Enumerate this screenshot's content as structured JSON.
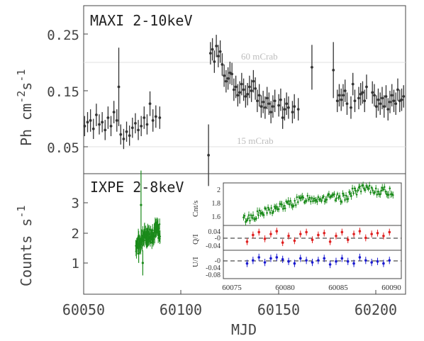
{
  "chart_data": [
    {
      "type": "scatter",
      "panel": "maxi",
      "title": "MAXI 2-10keV",
      "xlabel": "MJD",
      "ylabel_main": "Ph cm",
      "ylabel_exp1": "-2",
      "ylabel_mid": "s",
      "ylabel_exp2": "-1",
      "xlim": [
        60050,
        60215
      ],
      "ylim": [
        0.0,
        0.3
      ],
      "yticks": [
        0.05,
        0.15,
        0.25
      ],
      "ytick_labels": [
        "0.05",
        "0.15",
        "0.25"
      ],
      "reference_lines": [
        {
          "y": 0.2,
          "label": "60 mCrab"
        },
        {
          "y": 0.05,
          "label": "15 mCrab"
        }
      ],
      "color": "#333333",
      "points": [
        {
          "x": 60050.5,
          "y": 0.085,
          "e": 0.018
        },
        {
          "x": 60052,
          "y": 0.092,
          "e": 0.018
        },
        {
          "x": 60053.5,
          "y": 0.095,
          "e": 0.02
        },
        {
          "x": 60055,
          "y": 0.08,
          "e": 0.018
        },
        {
          "x": 60056.5,
          "y": 0.105,
          "e": 0.02
        },
        {
          "x": 60058,
          "y": 0.088,
          "e": 0.018
        },
        {
          "x": 60059.5,
          "y": 0.092,
          "e": 0.018
        },
        {
          "x": 60061,
          "y": 0.078,
          "e": 0.018
        },
        {
          "x": 60062.5,
          "y": 0.1,
          "e": 0.02
        },
        {
          "x": 60064,
          "y": 0.085,
          "e": 0.018
        },
        {
          "x": 60065.5,
          "y": 0.11,
          "e": 0.02
        },
        {
          "x": 60067,
          "y": 0.095,
          "e": 0.02
        },
        {
          "x": 60068,
          "y": 0.155,
          "e": 0.07
        },
        {
          "x": 60069,
          "y": 0.07,
          "e": 0.018
        },
        {
          "x": 60070.5,
          "y": 0.062,
          "e": 0.018
        },
        {
          "x": 60072,
          "y": 0.075,
          "e": 0.018
        },
        {
          "x": 60073.5,
          "y": 0.068,
          "e": 0.018
        },
        {
          "x": 60075,
          "y": 0.082,
          "e": 0.018
        },
        {
          "x": 60076.5,
          "y": 0.09,
          "e": 0.018
        },
        {
          "x": 60078,
          "y": 0.078,
          "e": 0.018
        },
        {
          "x": 60079.5,
          "y": 0.085,
          "e": 0.018
        },
        {
          "x": 60081,
          "y": 0.1,
          "e": 0.02
        },
        {
          "x": 60082.5,
          "y": 0.088,
          "e": 0.018
        },
        {
          "x": 60084,
          "y": 0.125,
          "e": 0.022
        },
        {
          "x": 60085.5,
          "y": 0.095,
          "e": 0.02
        },
        {
          "x": 60087,
          "y": 0.102,
          "e": 0.02
        },
        {
          "x": 60089,
          "y": 0.1,
          "e": 0.02
        },
        {
          "x": 60114,
          "y": 0.033,
          "e": 0.055
        },
        {
          "x": 60115,
          "y": 0.215,
          "e": 0.02
        },
        {
          "x": 60116,
          "y": 0.222,
          "e": 0.02
        },
        {
          "x": 60117,
          "y": 0.2,
          "e": 0.02
        },
        {
          "x": 60118,
          "y": 0.228,
          "e": 0.02
        },
        {
          "x": 60119,
          "y": 0.21,
          "e": 0.02
        },
        {
          "x": 60120,
          "y": 0.218,
          "e": 0.02
        },
        {
          "x": 60121,
          "y": 0.195,
          "e": 0.02
        },
        {
          "x": 60122,
          "y": 0.175,
          "e": 0.02
        },
        {
          "x": 60123,
          "y": 0.165,
          "e": 0.02
        },
        {
          "x": 60124,
          "y": 0.17,
          "e": 0.02
        },
        {
          "x": 60125,
          "y": 0.18,
          "e": 0.02
        },
        {
          "x": 60126,
          "y": 0.178,
          "e": 0.02
        },
        {
          "x": 60127,
          "y": 0.15,
          "e": 0.02
        },
        {
          "x": 60128,
          "y": 0.155,
          "e": 0.02
        },
        {
          "x": 60129,
          "y": 0.14,
          "e": 0.02
        },
        {
          "x": 60130,
          "y": 0.145,
          "e": 0.02
        },
        {
          "x": 60131,
          "y": 0.16,
          "e": 0.02
        },
        {
          "x": 60132,
          "y": 0.15,
          "e": 0.02
        },
        {
          "x": 60133,
          "y": 0.138,
          "e": 0.02
        },
        {
          "x": 60134,
          "y": 0.142,
          "e": 0.02
        },
        {
          "x": 60135,
          "y": 0.155,
          "e": 0.02
        },
        {
          "x": 60136,
          "y": 0.148,
          "e": 0.02
        },
        {
          "x": 60137,
          "y": 0.165,
          "e": 0.02
        },
        {
          "x": 60138,
          "y": 0.152,
          "e": 0.02
        },
        {
          "x": 60139,
          "y": 0.13,
          "e": 0.02
        },
        {
          "x": 60140,
          "y": 0.14,
          "e": 0.02
        },
        {
          "x": 60141,
          "y": 0.12,
          "e": 0.02
        },
        {
          "x": 60142,
          "y": 0.128,
          "e": 0.02
        },
        {
          "x": 60143,
          "y": 0.118,
          "e": 0.02
        },
        {
          "x": 60144,
          "y": 0.135,
          "e": 0.02
        },
        {
          "x": 60145,
          "y": 0.125,
          "e": 0.02
        },
        {
          "x": 60146,
          "y": 0.11,
          "e": 0.02
        },
        {
          "x": 60147,
          "y": 0.12,
          "e": 0.02
        },
        {
          "x": 60148,
          "y": 0.13,
          "e": 0.02
        },
        {
          "x": 60150,
          "y": 0.122,
          "e": 0.02
        },
        {
          "x": 60151,
          "y": 0.132,
          "e": 0.02
        },
        {
          "x": 60152,
          "y": 0.1,
          "e": 0.02
        },
        {
          "x": 60153,
          "y": 0.115,
          "e": 0.02
        },
        {
          "x": 60154,
          "y": 0.125,
          "e": 0.02
        },
        {
          "x": 60155,
          "y": 0.118,
          "e": 0.02
        },
        {
          "x": 60157,
          "y": 0.11,
          "e": 0.02
        },
        {
          "x": 60158,
          "y": 0.12,
          "e": 0.022
        },
        {
          "x": 60160,
          "y": 0.115,
          "e": 0.02
        },
        {
          "x": 60167,
          "y": 0.19,
          "e": 0.04
        },
        {
          "x": 60178,
          "y": 0.185,
          "e": 0.05
        },
        {
          "x": 60180,
          "y": 0.13,
          "e": 0.02
        },
        {
          "x": 60181,
          "y": 0.14,
          "e": 0.02
        },
        {
          "x": 60182,
          "y": 0.132,
          "e": 0.02
        },
        {
          "x": 60183,
          "y": 0.14,
          "e": 0.02
        },
        {
          "x": 60184,
          "y": 0.148,
          "e": 0.02
        },
        {
          "x": 60185,
          "y": 0.125,
          "e": 0.02
        },
        {
          "x": 60187,
          "y": 0.118,
          "e": 0.02
        },
        {
          "x": 60188,
          "y": 0.16,
          "e": 0.02
        },
        {
          "x": 60189,
          "y": 0.13,
          "e": 0.02
        },
        {
          "x": 60191,
          "y": 0.135,
          "e": 0.02
        },
        {
          "x": 60192,
          "y": 0.142,
          "e": 0.02
        },
        {
          "x": 60193,
          "y": 0.145,
          "e": 0.02
        },
        {
          "x": 60194,
          "y": 0.13,
          "e": 0.02
        },
        {
          "x": 60195,
          "y": 0.155,
          "e": 0.022
        },
        {
          "x": 60198,
          "y": 0.145,
          "e": 0.02
        },
        {
          "x": 60199,
          "y": 0.14,
          "e": 0.02
        },
        {
          "x": 60200,
          "y": 0.12,
          "e": 0.02
        },
        {
          "x": 60201,
          "y": 0.132,
          "e": 0.02
        },
        {
          "x": 60202,
          "y": 0.125,
          "e": 0.02
        },
        {
          "x": 60203,
          "y": 0.135,
          "e": 0.02
        },
        {
          "x": 60204,
          "y": 0.12,
          "e": 0.02
        },
        {
          "x": 60205,
          "y": 0.138,
          "e": 0.02
        },
        {
          "x": 60206,
          "y": 0.115,
          "e": 0.02
        },
        {
          "x": 60207,
          "y": 0.128,
          "e": 0.02
        },
        {
          "x": 60208,
          "y": 0.14,
          "e": 0.02
        },
        {
          "x": 60209,
          "y": 0.13,
          "e": 0.02
        },
        {
          "x": 60210,
          "y": 0.125,
          "e": 0.02
        },
        {
          "x": 60211,
          "y": 0.15,
          "e": 0.02
        },
        {
          "x": 60212,
          "y": 0.13,
          "e": 0.02
        },
        {
          "x": 60213,
          "y": 0.132,
          "e": 0.02
        },
        {
          "x": 60214,
          "y": 0.138,
          "e": 0.02
        }
      ]
    },
    {
      "type": "scatter",
      "panel": "ixpe",
      "title": "IXPE 2-8keV",
      "xlabel": "MJD",
      "ylabel_main": "Counts s",
      "ylabel_exp": "-1",
      "xlim": [
        60050,
        60215
      ],
      "ylim": [
        0.0,
        3.85
      ],
      "xticks": [
        60050,
        60100,
        60150,
        60200
      ],
      "xtick_labels": [
        "60050",
        "60100",
        "60150",
        "60200"
      ],
      "yticks": [
        1,
        2,
        3
      ],
      "ytick_labels": [
        "1",
        "2",
        "3"
      ],
      "color": "#1a8a1a",
      "x_range": [
        60076.7,
        60089.3
      ],
      "trend": [
        {
          "x": 60076.7,
          "y": 1.55
        },
        {
          "x": 60079,
          "y": 1.7
        },
        {
          "x": 60082,
          "y": 1.9
        },
        {
          "x": 60085,
          "y": 1.9
        },
        {
          "x": 60086.5,
          "y": 2.05
        },
        {
          "x": 60089.3,
          "y": 2.0
        }
      ],
      "outliers": [
        {
          "x": 60079.4,
          "y": 2.85,
          "e": 1.1
        },
        {
          "x": 60080.3,
          "y": 1.0,
          "e": 0.4
        },
        {
          "x": 60078.2,
          "y": 1.3,
          "e": 0.3
        }
      ]
    },
    {
      "type": "scatter",
      "panel": "inset-counts",
      "ylabel": "Cnt/s",
      "xlim": [
        60075,
        60090
      ],
      "ylim": [
        1.45,
        2.15
      ],
      "yticks": [
        1.6,
        1.8,
        2.0
      ],
      "ytick_labels": [
        "1.6",
        "1.8",
        "2"
      ],
      "color": "#1a8a1a",
      "x_range": [
        60076.7,
        60089.3
      ]
    },
    {
      "type": "scatter",
      "panel": "inset-q",
      "ylabel": "Q/I",
      "xlim": [
        60075,
        60090
      ],
      "ylim": [
        -0.065,
        0.065
      ],
      "yticks": [
        0.04,
        0.0,
        -0.04
      ],
      "ytick_labels": [
        "0.04",
        "-0",
        "-0.04"
      ],
      "color": "#e02020",
      "points": [
        {
          "x": 60077.0,
          "y": -0.02
        },
        {
          "x": 60077.5,
          "y": 0.015
        },
        {
          "x": 60078.0,
          "y": 0.03
        },
        {
          "x": 60078.5,
          "y": -0.005
        },
        {
          "x": 60079.0,
          "y": 0.02
        },
        {
          "x": 60079.5,
          "y": 0.035
        },
        {
          "x": 60080.0,
          "y": -0.025
        },
        {
          "x": 60080.5,
          "y": 0.01
        },
        {
          "x": 60081.0,
          "y": -0.015
        },
        {
          "x": 60081.5,
          "y": 0.02
        },
        {
          "x": 60082.0,
          "y": 0.03
        },
        {
          "x": 60082.5,
          "y": -0.01
        },
        {
          "x": 60083.0,
          "y": 0.015
        },
        {
          "x": 60083.5,
          "y": 0.025
        },
        {
          "x": 60084.0,
          "y": -0.02
        },
        {
          "x": 60084.5,
          "y": 0.01
        },
        {
          "x": 60085.0,
          "y": 0.03
        },
        {
          "x": 60085.5,
          "y": -0.01
        },
        {
          "x": 60086.0,
          "y": 0.02
        },
        {
          "x": 60086.5,
          "y": 0.035
        },
        {
          "x": 60087.0,
          "y": 0.0
        },
        {
          "x": 60087.5,
          "y": 0.02
        },
        {
          "x": 60088.0,
          "y": 0.025
        },
        {
          "x": 60088.5,
          "y": 0.01
        },
        {
          "x": 60089.0,
          "y": 0.03
        }
      ]
    },
    {
      "type": "scatter",
      "panel": "inset-u",
      "ylabel": "U/I",
      "xlim": [
        60075,
        60090
      ],
      "ylim": [
        -0.095,
        0.045
      ],
      "yticks": [
        0.0,
        -0.04,
        -0.08
      ],
      "ytick_labels": [
        "-0",
        "-0.04",
        "-0.08"
      ],
      "xticks": [
        60075,
        60080,
        60085,
        60090
      ],
      "xtick_labels": [
        "60075",
        "60080",
        "60085",
        "60090"
      ],
      "color": "#1a1ad0",
      "points": [
        {
          "x": 60077.0,
          "y": -0.02
        },
        {
          "x": 60077.5,
          "y": -0.005
        },
        {
          "x": 60078.0,
          "y": 0.01
        },
        {
          "x": 60078.5,
          "y": -0.015
        },
        {
          "x": 60079.0,
          "y": 0.005
        },
        {
          "x": 60079.5,
          "y": 0.01
        },
        {
          "x": 60080.0,
          "y": 0.0
        },
        {
          "x": 60080.5,
          "y": -0.01
        },
        {
          "x": 60081.0,
          "y": -0.02
        },
        {
          "x": 60081.5,
          "y": 0.005
        },
        {
          "x": 60082.0,
          "y": -0.005
        },
        {
          "x": 60082.5,
          "y": -0.015
        },
        {
          "x": 60083.0,
          "y": -0.005
        },
        {
          "x": 60083.5,
          "y": 0.005
        },
        {
          "x": 60084.0,
          "y": -0.025
        },
        {
          "x": 60084.5,
          "y": -0.01
        },
        {
          "x": 60085.0,
          "y": 0.005
        },
        {
          "x": 60085.5,
          "y": -0.01
        },
        {
          "x": 60086.0,
          "y": -0.02
        },
        {
          "x": 60086.5,
          "y": 0.01
        },
        {
          "x": 60087.0,
          "y": -0.005
        },
        {
          "x": 60087.5,
          "y": -0.015
        },
        {
          "x": 60088.0,
          "y": -0.01
        },
        {
          "x": 60088.5,
          "y": -0.02
        },
        {
          "x": 60089.0,
          "y": -0.005
        }
      ]
    }
  ]
}
